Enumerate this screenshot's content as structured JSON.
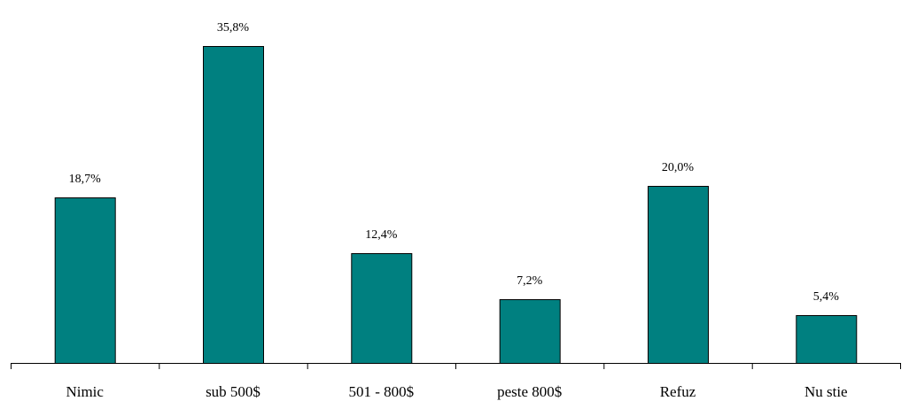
{
  "chart_data": {
    "type": "bar",
    "categories": [
      "Nimic",
      "sub 500$",
      "501 - 800$",
      "peste 800$",
      "Refuz",
      "Nu stie"
    ],
    "values": [
      18.7,
      35.8,
      12.4,
      7.2,
      20.0,
      5.4
    ],
    "value_labels": [
      "18,7%",
      "35,8%",
      "12,4%",
      "7,2%",
      "20,0%",
      "5,4%"
    ],
    "title": "",
    "xlabel": "",
    "ylabel": "",
    "ylim": [
      0,
      40
    ],
    "grid": false,
    "legend": "none",
    "colors": {
      "bar": "#008080",
      "border": "#000000"
    }
  }
}
